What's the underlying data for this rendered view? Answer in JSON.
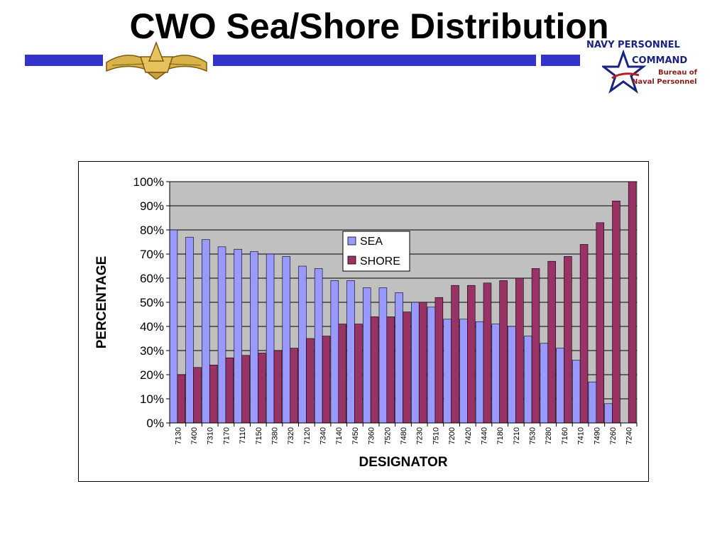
{
  "slide": {
    "title": "CWO Sea/Shore Distribution"
  },
  "logo": {
    "line1": "NAVY PERSONNEL",
    "line2": "COMMAND",
    "line3": "Bureau of",
    "line4": "Naval Personnel"
  },
  "colors": {
    "band": "#3333cc",
    "sea": "#9999ff",
    "shore": "#993366",
    "plot_bg": "#c0c0c0"
  },
  "chart_data": {
    "type": "bar",
    "xlabel": "DESIGNATOR",
    "ylabel": "PERCENTAGE",
    "ylim": [
      0,
      100
    ],
    "y_ticks": [
      "0%",
      "10%",
      "20%",
      "30%",
      "40%",
      "50%",
      "60%",
      "70%",
      "80%",
      "90%",
      "100%"
    ],
    "grid": true,
    "legend_position": "center-top",
    "categories": [
      "7130",
      "7400",
      "7310",
      "7170",
      "7110",
      "7150",
      "7380",
      "7320",
      "7120",
      "7340",
      "7140",
      "7450",
      "7360",
      "7520",
      "7480",
      "7230",
      "7510",
      "7200",
      "7420",
      "7440",
      "7180",
      "7210",
      "7530",
      "7280",
      "7160",
      "7410",
      "7490",
      "7260",
      "7240"
    ],
    "series": [
      {
        "name": "SEA",
        "values": [
          80,
          77,
          76,
          73,
          72,
          71,
          70,
          69,
          65,
          64,
          59,
          59,
          56,
          56,
          54,
          50,
          48,
          43,
          43,
          42,
          41,
          40,
          36,
          33,
          31,
          26,
          17,
          8,
          0
        ]
      },
      {
        "name": "SHORE",
        "values": [
          20,
          23,
          24,
          27,
          28,
          29,
          30,
          31,
          35,
          36,
          41,
          41,
          44,
          44,
          46,
          50,
          52,
          57,
          57,
          58,
          59,
          60,
          64,
          67,
          69,
          74,
          83,
          92,
          100
        ]
      }
    ]
  }
}
